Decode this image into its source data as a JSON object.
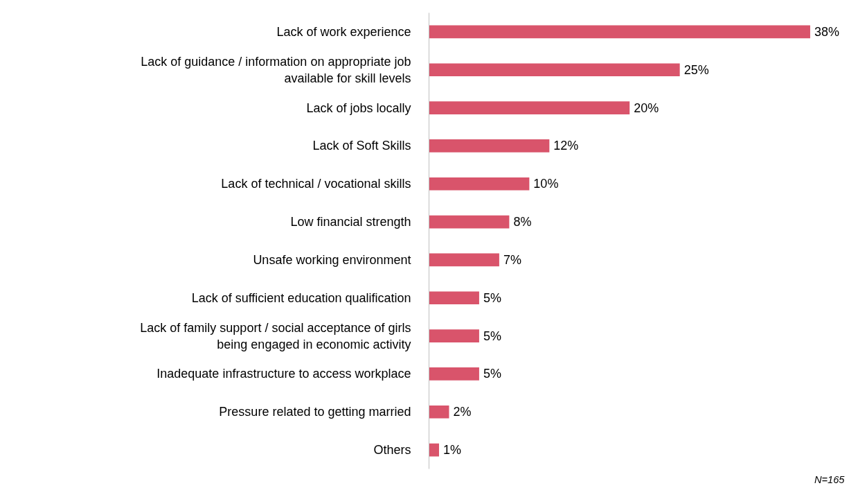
{
  "chart_data": {
    "type": "bar",
    "orientation": "horizontal",
    "categories": [
      "Lack of work experience",
      "Lack of guidance / information on appropriate job available for skill levels",
      "Lack of jobs locally",
      "Lack of Soft Skills",
      "Lack of technical / vocational skills",
      "Low financial strength",
      "Unsafe working environment",
      "Lack of sufficient education qualification",
      "Lack of family support / social acceptance of girls being engaged in economic activity",
      "Inadequate infrastructure to access workplace",
      "Pressure related to getting married",
      "Others"
    ],
    "values": [
      38,
      25,
      20,
      12,
      10,
      8,
      7,
      5,
      5,
      5,
      2,
      1
    ],
    "value_labels": [
      "38%",
      "25%",
      "20%",
      "12%",
      "10%",
      "8%",
      "7%",
      "5%",
      "5%",
      "5%",
      "2%",
      "1%"
    ],
    "color": "#d9546b",
    "grid": false,
    "annotations": [
      "N=165"
    ]
  }
}
